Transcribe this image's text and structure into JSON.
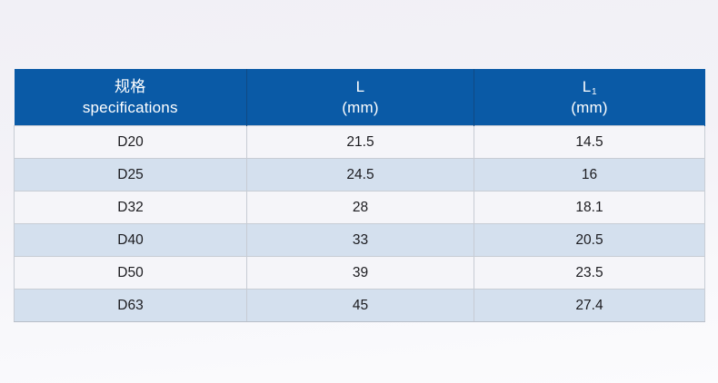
{
  "page": {
    "background_top_color": "#f1f0f6",
    "background_bottom_color": "#fbfbfd",
    "header_blue": "#0a5aa6",
    "row_white": "#f5f5f9",
    "row_blue": "#d4e0ee"
  },
  "table": {
    "header": {
      "col1": {
        "line1": "规格",
        "line2": "specifications"
      },
      "col2": {
        "line1": "L",
        "line2": "(mm)"
      },
      "col3": {
        "symbol": "L",
        "subscript": "1",
        "line2": "(mm)"
      }
    },
    "rows": [
      {
        "spec": "D20",
        "l": "21.5",
        "l1": "14.5"
      },
      {
        "spec": "D25",
        "l": "24.5",
        "l1": "16"
      },
      {
        "spec": "D32",
        "l": "28",
        "l1": "18.1"
      },
      {
        "spec": "D40",
        "l": "33",
        "l1": "20.5"
      },
      {
        "spec": "D50",
        "l": "39",
        "l1": "23.5"
      },
      {
        "spec": "D63",
        "l": "45",
        "l1": "27.4"
      }
    ]
  },
  "chart_data": {
    "type": "table",
    "title": "规格 specifications",
    "columns": [
      "规格 specifications",
      "L (mm)",
      "L1 (mm)"
    ],
    "categories": [
      "D20",
      "D25",
      "D32",
      "D40",
      "D50",
      "D63"
    ],
    "series": [
      {
        "name": "L (mm)",
        "values": [
          21.5,
          24.5,
          28,
          33,
          39,
          45
        ]
      },
      {
        "name": "L1 (mm)",
        "values": [
          14.5,
          16,
          18.1,
          20.5,
          23.5,
          27.4
        ]
      }
    ]
  }
}
